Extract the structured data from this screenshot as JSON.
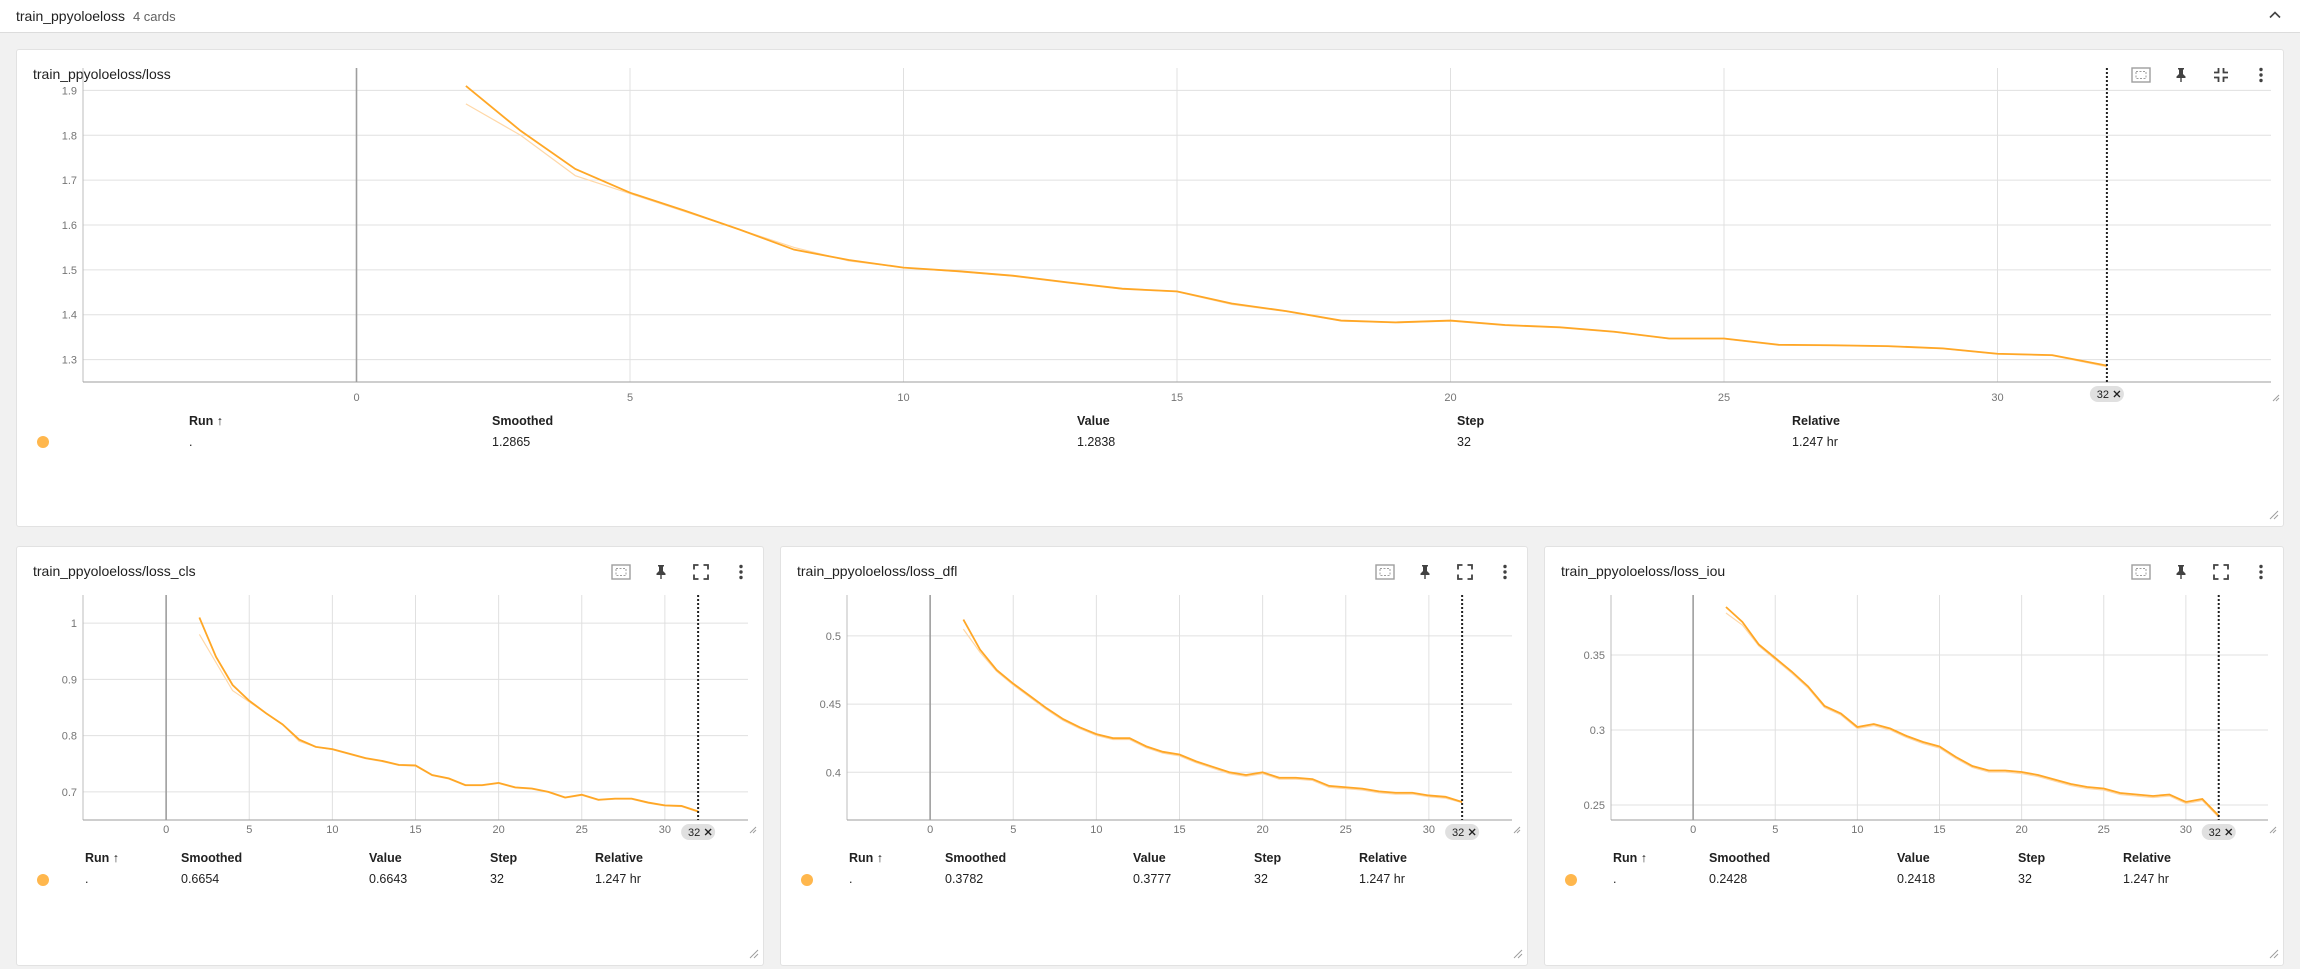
{
  "group": {
    "title": "train_ppyoloeloss",
    "count": "4 cards"
  },
  "colors": {
    "line": "#ffa726",
    "line_raw": "#ffd8a8",
    "grid": "#e0e0e0",
    "run_dot": "#ffb74d"
  },
  "icons": {
    "collapse": "chevron-up-icon",
    "data_selection": "fit-domain-icon",
    "pin": "pin-icon",
    "expand": "fullscreen-icon",
    "collapse_card": "fullscreen-exit-icon",
    "more": "more-vert-icon"
  },
  "table_headers": {
    "run": "Run ↑",
    "smoothed": "Smoothed",
    "value": "Value",
    "step": "Step",
    "relative": "Relative"
  },
  "cards": [
    {
      "title": "train_ppyoloeloss/loss",
      "row": {
        "run": ".",
        "smoothed": "1.2865",
        "value": "1.2838",
        "step": "32",
        "relative": "1.247 hr"
      },
      "badge": "32",
      "chart_data": {
        "type": "line",
        "x_ticks": [
          0,
          5,
          10,
          15,
          20,
          25,
          30
        ],
        "y_ticks": [
          1.3,
          1.4,
          1.5,
          1.6,
          1.7,
          1.8,
          1.9
        ],
        "xlim": [
          -5,
          35
        ],
        "ylim": [
          1.25,
          1.95
        ],
        "series": [
          {
            "x": [
              2,
              3,
              4,
              5,
              6,
              7,
              8,
              9,
              10,
              11,
              12,
              13,
              14,
              15,
              16,
              17,
              18,
              19,
              20,
              21,
              22,
              23,
              24,
              25,
              26,
              27,
              28,
              29,
              30,
              31,
              32
            ],
            "smoothed": [
              1.91,
              1.81,
              1.725,
              1.672,
              1.632,
              1.59,
              1.545,
              1.522,
              1.505,
              1.497,
              1.487,
              1.472,
              1.458,
              1.452,
              1.425,
              1.408,
              1.387,
              1.383,
              1.387,
              1.377,
              1.372,
              1.362,
              1.347,
              1.347,
              1.333,
              1.332,
              1.33,
              1.325,
              1.313,
              1.31,
              1.2865
            ],
            "values": [
              1.87,
              1.8,
              1.71,
              1.67,
              1.63,
              1.59,
              1.55,
              1.52,
              1.505,
              1.496,
              1.486,
              1.471,
              1.457,
              1.451,
              1.423,
              1.407,
              1.386,
              1.382,
              1.386,
              1.376,
              1.371,
              1.361,
              1.346,
              1.346,
              1.332,
              1.331,
              1.329,
              1.324,
              1.312,
              1.309,
              1.2838
            ]
          }
        ],
        "marker_x": 32
      }
    },
    {
      "title": "train_ppyoloeloss/loss_cls",
      "row": {
        "run": ".",
        "smoothed": "0.6654",
        "value": "0.6643",
        "step": "32",
        "relative": "1.247 hr"
      },
      "badge": "32",
      "chart_data": {
        "type": "line",
        "x_ticks": [
          0,
          5,
          10,
          15,
          20,
          25,
          30
        ],
        "y_ticks": [
          0.7,
          0.8,
          0.9,
          1
        ],
        "xlim": [
          -5,
          35
        ],
        "ylim": [
          0.65,
          1.05
        ],
        "series": [
          {
            "x": [
              2,
              3,
              4,
              5,
              6,
              7,
              8,
              9,
              10,
              11,
              12,
              13,
              14,
              15,
              16,
              17,
              18,
              19,
              20,
              21,
              22,
              23,
              24,
              25,
              26,
              27,
              28,
              29,
              30,
              31,
              32
            ],
            "smoothed": [
              1.01,
              0.94,
              0.89,
              0.862,
              0.84,
              0.82,
              0.793,
              0.78,
              0.776,
              0.768,
              0.76,
              0.755,
              0.748,
              0.747,
              0.73,
              0.724,
              0.712,
              0.712,
              0.716,
              0.708,
              0.706,
              0.7,
              0.69,
              0.695,
              0.686,
              0.688,
              0.688,
              0.681,
              0.676,
              0.675,
              0.6654
            ],
            "values": [
              0.98,
              0.93,
              0.88,
              0.86,
              0.84,
              0.82,
              0.79,
              0.78,
              0.775,
              0.767,
              0.759,
              0.754,
              0.747,
              0.746,
              0.729,
              0.723,
              0.711,
              0.711,
              0.715,
              0.707,
              0.705,
              0.699,
              0.689,
              0.694,
              0.685,
              0.687,
              0.687,
              0.68,
              0.675,
              0.674,
              0.6643
            ]
          }
        ],
        "marker_x": 32
      }
    },
    {
      "title": "train_ppyoloeloss/loss_dfl",
      "row": {
        "run": ".",
        "smoothed": "0.3782",
        "value": "0.3777",
        "step": "32",
        "relative": "1.247 hr"
      },
      "badge": "32",
      "chart_data": {
        "type": "line",
        "x_ticks": [
          0,
          5,
          10,
          15,
          20,
          25,
          30
        ],
        "y_ticks": [
          0.4,
          0.45,
          0.5
        ],
        "xlim": [
          -5,
          35
        ],
        "ylim": [
          0.365,
          0.53
        ],
        "series": [
          {
            "x": [
              2,
              3,
              4,
              5,
              6,
              7,
              8,
              9,
              10,
              11,
              12,
              13,
              14,
              15,
              16,
              17,
              18,
              19,
              20,
              21,
              22,
              23,
              24,
              25,
              26,
              27,
              28,
              29,
              30,
              31,
              32
            ],
            "smoothed": [
              0.512,
              0.49,
              0.475,
              0.465,
              0.456,
              0.447,
              0.439,
              0.433,
              0.428,
              0.425,
              0.425,
              0.419,
              0.415,
              0.413,
              0.408,
              0.404,
              0.4,
              0.398,
              0.4,
              0.396,
              0.396,
              0.395,
              0.39,
              0.389,
              0.388,
              0.386,
              0.385,
              0.385,
              0.383,
              0.382,
              0.3782
            ],
            "values": [
              0.505,
              0.488,
              0.474,
              0.464,
              0.455,
              0.446,
              0.438,
              0.432,
              0.427,
              0.424,
              0.424,
              0.418,
              0.414,
              0.412,
              0.407,
              0.403,
              0.399,
              0.397,
              0.399,
              0.395,
              0.395,
              0.394,
              0.389,
              0.388,
              0.387,
              0.385,
              0.384,
              0.384,
              0.382,
              0.381,
              0.3777
            ]
          }
        ],
        "marker_x": 32
      }
    },
    {
      "title": "train_ppyoloeloss/loss_iou",
      "row": {
        "run": ".",
        "smoothed": "0.2428",
        "value": "0.2418",
        "step": "32",
        "relative": "1.247 hr"
      },
      "badge": "32",
      "chart_data": {
        "type": "line",
        "x_ticks": [
          0,
          5,
          10,
          15,
          20,
          25,
          30
        ],
        "y_ticks": [
          0.25,
          0.3,
          0.35
        ],
        "xlim": [
          -5,
          35
        ],
        "ylim": [
          0.24,
          0.39
        ],
        "series": [
          {
            "x": [
              2,
              3,
              4,
              5,
              6,
              7,
              8,
              9,
              10,
              11,
              12,
              13,
              14,
              15,
              16,
              17,
              18,
              19,
              20,
              21,
              22,
              23,
              24,
              25,
              26,
              27,
              28,
              29,
              30,
              31,
              32
            ],
            "smoothed": [
              0.382,
              0.372,
              0.357,
              0.348,
              0.339,
              0.329,
              0.316,
              0.311,
              0.302,
              0.304,
              0.301,
              0.296,
              0.292,
              0.289,
              0.282,
              0.276,
              0.273,
              0.273,
              0.272,
              0.27,
              0.267,
              0.264,
              0.262,
              0.261,
              0.258,
              0.257,
              0.256,
              0.257,
              0.252,
              0.254,
              0.2428
            ],
            "values": [
              0.378,
              0.37,
              0.356,
              0.347,
              0.338,
              0.328,
              0.315,
              0.31,
              0.301,
              0.303,
              0.3,
              0.295,
              0.291,
              0.288,
              0.281,
              0.275,
              0.272,
              0.272,
              0.271,
              0.269,
              0.266,
              0.263,
              0.261,
              0.26,
              0.257,
              0.256,
              0.255,
              0.256,
              0.251,
              0.253,
              0.2418
            ]
          }
        ],
        "marker_x": 32
      }
    }
  ]
}
